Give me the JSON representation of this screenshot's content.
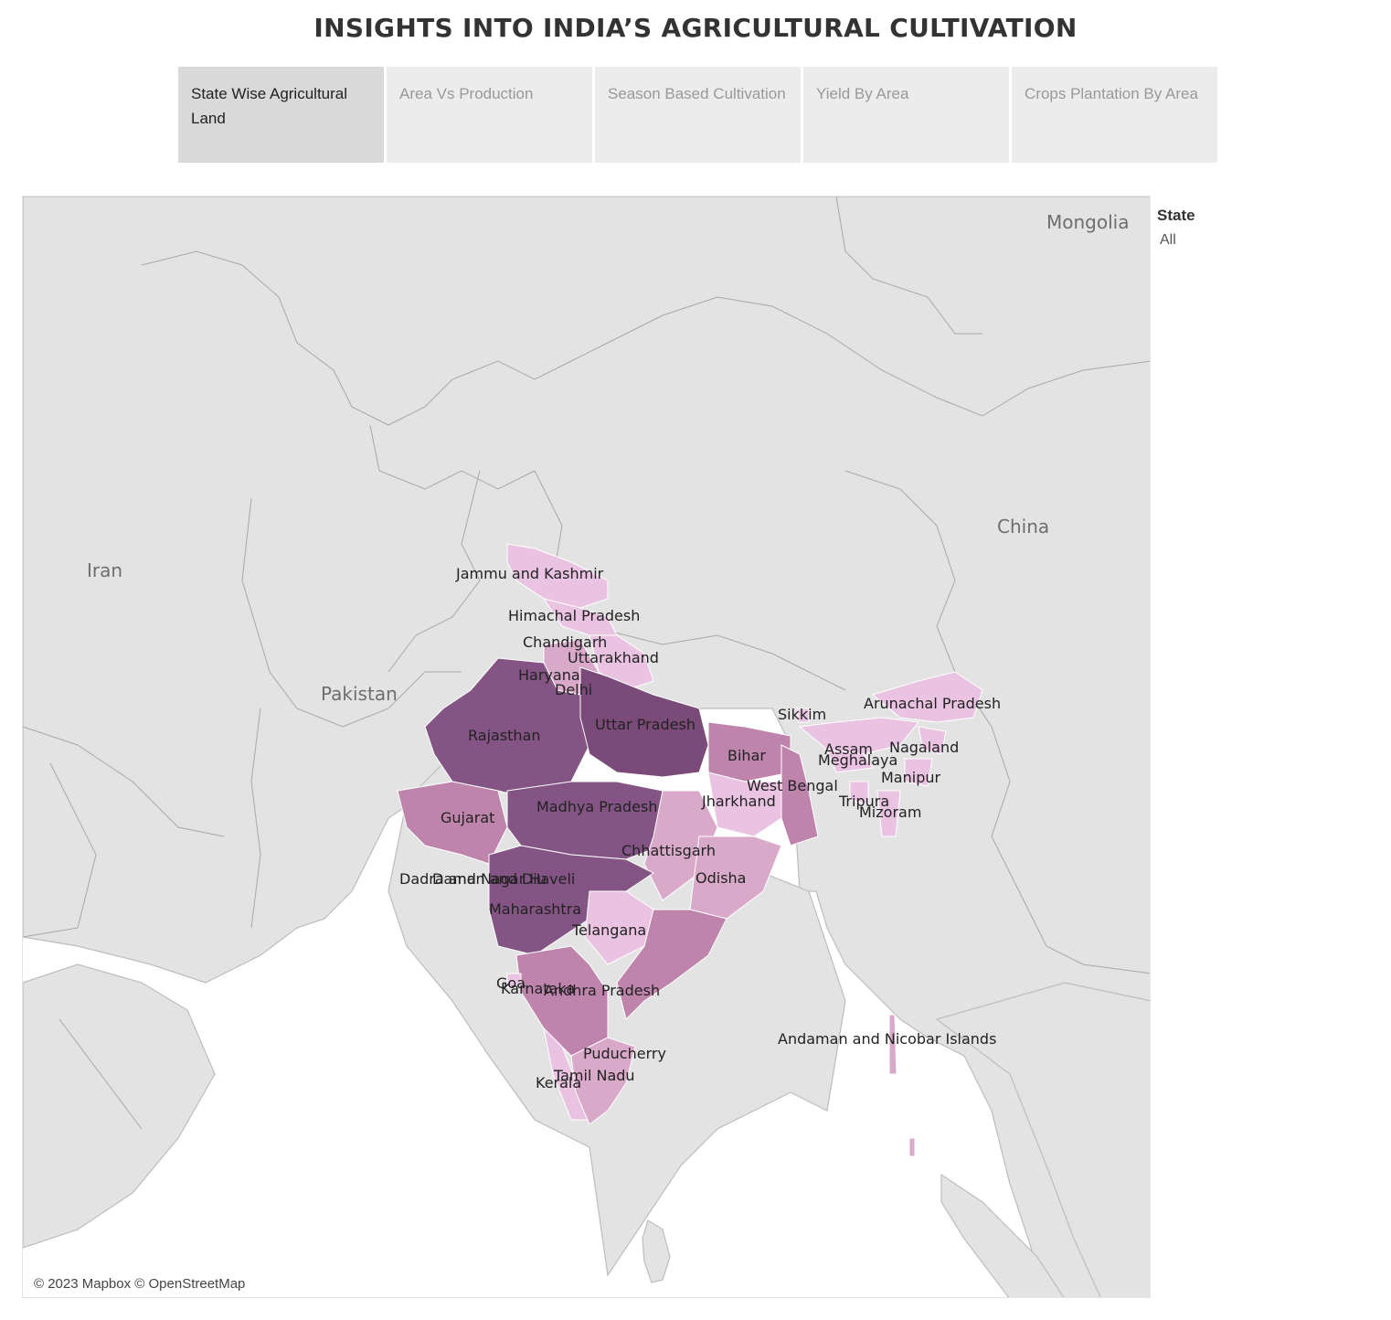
{
  "title": "INSIGHTS INTO INDIA’S AGRICULTURAL CULTIVATION",
  "tabs": [
    {
      "label": "State Wise Agricultural Land",
      "active": true
    },
    {
      "label": "Area Vs Production",
      "active": false
    },
    {
      "label": "Season Based Cultivation",
      "active": false
    },
    {
      "label": "Yield By Area",
      "active": false
    },
    {
      "label": "Crops Plantation By Area",
      "active": false
    }
  ],
  "filter": {
    "title": "State",
    "value": "All"
  },
  "map": {
    "countries": [
      "Mongolia",
      "China",
      "Iran",
      "Pakistan"
    ],
    "attribution": "© 2023 Mapbox © OpenStreetMap",
    "colors": {
      "land": "#e3e3e3",
      "sea": "#ffffff",
      "shade1": "#e9c3e1",
      "shade2": "#d9a9c9",
      "shade3": "#bf84ac",
      "shade4": "#845484",
      "shade5": "#7a4a78"
    },
    "states": [
      "Jammu and Kashmir",
      "Himachal Pradesh",
      "Chandigarh",
      "Uttarakhand",
      "Haryana",
      "Delhi",
      "Rajasthan",
      "Uttar Pradesh",
      "Bihar",
      "Sikkim",
      "Arunachal Pradesh",
      "Assam",
      "Meghalaya",
      "Nagaland",
      "Manipur",
      "Tripura",
      "Mizoram",
      "West Bengal",
      "Jharkhand",
      "Gujarat",
      "Madhya Pradesh",
      "Chhattisgarh",
      "Odisha",
      "Dadra and Nagar Haveli",
      "Daman and Diu",
      "Maharashtra",
      "Telangana",
      "Goa",
      "Karnataka",
      "Andhra Pradesh",
      "Puducherry",
      "Tamil Nadu",
      "Kerala",
      "Andaman and Nicobar Islands"
    ]
  }
}
